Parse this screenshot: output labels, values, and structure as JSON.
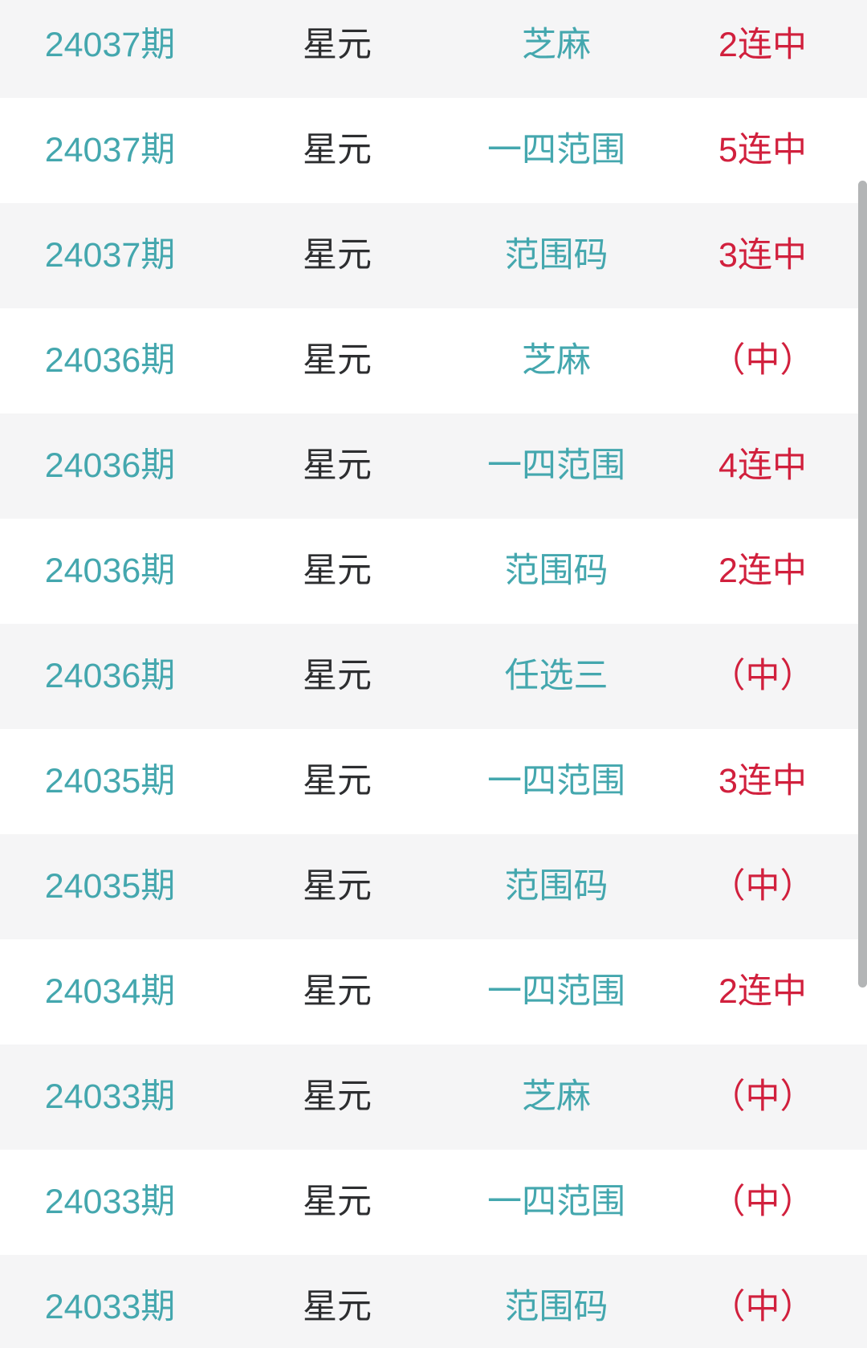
{
  "colors": {
    "accent_teal": "#44a7ae",
    "text_dark": "#2d2e30",
    "status_red": "#d1203d",
    "row_stripe_bg": "#f5f5f6",
    "row_bg": "#ffffff",
    "scrollbar_thumb": "#b3b5b6"
  },
  "table": {
    "rows": [
      {
        "period": "24037期",
        "name": "星元",
        "play": "芝麻",
        "result": "2连中"
      },
      {
        "period": "24037期",
        "name": "星元",
        "play": "一四范围",
        "result": "5连中"
      },
      {
        "period": "24037期",
        "name": "星元",
        "play": "范围码",
        "result": "3连中"
      },
      {
        "period": "24036期",
        "name": "星元",
        "play": "芝麻",
        "result": "（中）"
      },
      {
        "period": "24036期",
        "name": "星元",
        "play": "一四范围",
        "result": "4连中"
      },
      {
        "period": "24036期",
        "name": "星元",
        "play": "范围码",
        "result": "2连中"
      },
      {
        "period": "24036期",
        "name": "星元",
        "play": "任选三",
        "result": "（中）"
      },
      {
        "period": "24035期",
        "name": "星元",
        "play": "一四范围",
        "result": "3连中"
      },
      {
        "period": "24035期",
        "name": "星元",
        "play": "范围码",
        "result": "（中）"
      },
      {
        "period": "24034期",
        "name": "星元",
        "play": "一四范围",
        "result": "2连中"
      },
      {
        "period": "24033期",
        "name": "星元",
        "play": "芝麻",
        "result": "（中）"
      },
      {
        "period": "24033期",
        "name": "星元",
        "play": "一四范围",
        "result": "（中）"
      },
      {
        "period": "24033期",
        "name": "星元",
        "play": "范围码",
        "result": "（中）"
      }
    ]
  }
}
